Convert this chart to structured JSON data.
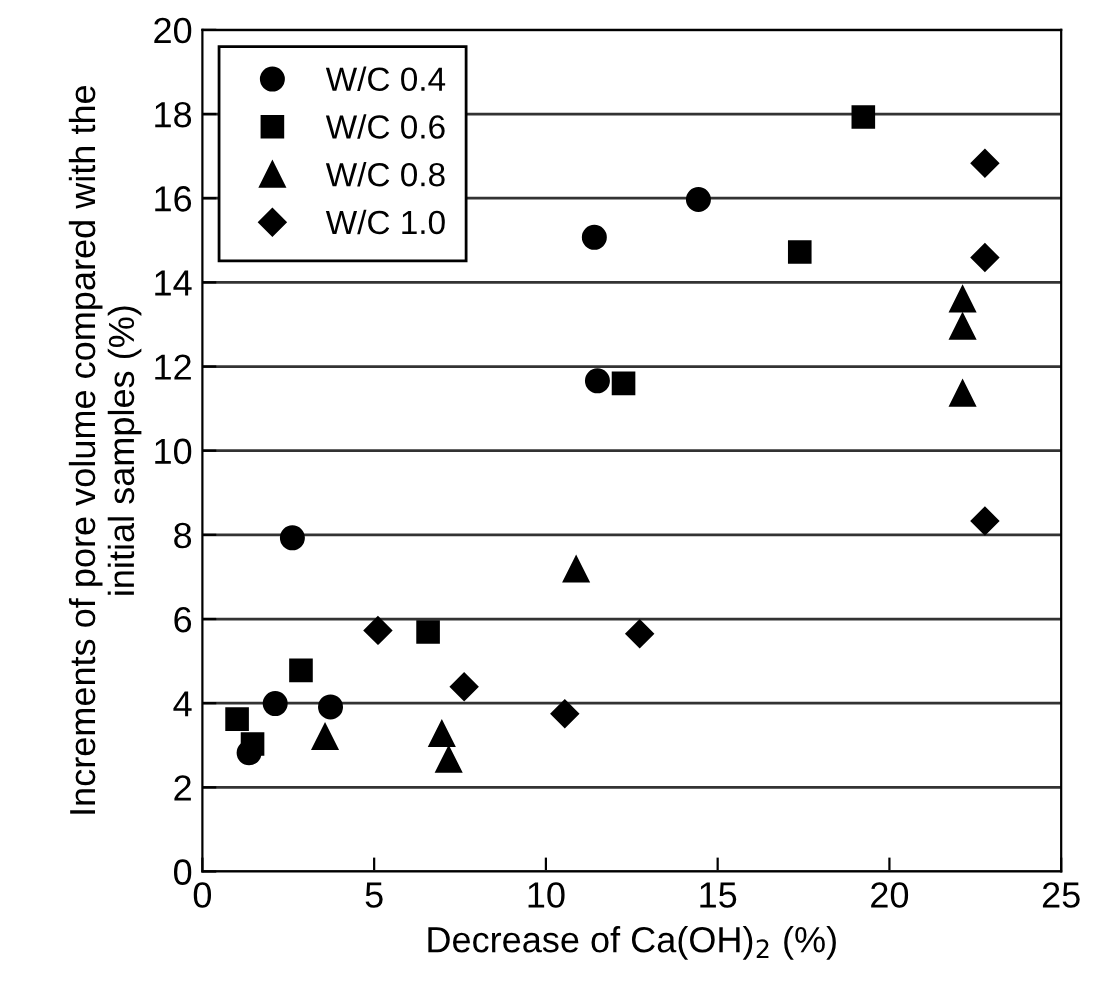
{
  "chart_data": {
    "type": "scatter",
    "xlabel": "Decrease of Ca(OH)$_{2}$ (%)",
    "ylabel": "Increments of pore volume compared with the\ninitial samples (%)",
    "xlim": [
      0,
      25
    ],
    "xticks": [
      0,
      5,
      10,
      15,
      20,
      25
    ],
    "ylim": [
      0,
      20
    ],
    "yticks": [
      0,
      2,
      4,
      6,
      8,
      10,
      12,
      14,
      16,
      18,
      20
    ],
    "grid": "y",
    "legend": "top left",
    "series": [
      {
        "name": "W/C 0.4",
        "color": "#000000",
        "marker": "circle",
        "x": [
          2.62,
          2.12,
          3.73,
          1.36,
          11.41,
          14.44,
          11.5
        ],
        "values": [
          7.93,
          3.99,
          3.91,
          2.82,
          15.07,
          15.97,
          11.66
        ]
      },
      {
        "name": "W/C 0.6",
        "color": "#000000",
        "marker": "square",
        "x": [
          1.01,
          1.46,
          2.87,
          6.57,
          12.26,
          17.39,
          19.24
        ],
        "values": [
          3.62,
          3.03,
          4.78,
          5.69,
          11.6,
          14.72,
          17.93
        ]
      },
      {
        "name": "W/C 0.8",
        "color": "#000000",
        "marker": "triangle",
        "x": [
          3.57,
          6.97,
          7.17,
          10.88,
          22.13,
          22.13,
          22.13
        ],
        "values": [
          3.2,
          3.27,
          2.66,
          7.18,
          13.6,
          12.95,
          11.36
        ]
      },
      {
        "name": "W/C 1.0",
        "color": "#000000",
        "marker": "diamond",
        "x": [
          5.11,
          7.62,
          10.55,
          12.73,
          22.78,
          22.78,
          22.78
        ],
        "values": [
          5.73,
          4.39,
          3.75,
          5.65,
          16.83,
          14.59,
          8.33
        ]
      }
    ]
  }
}
